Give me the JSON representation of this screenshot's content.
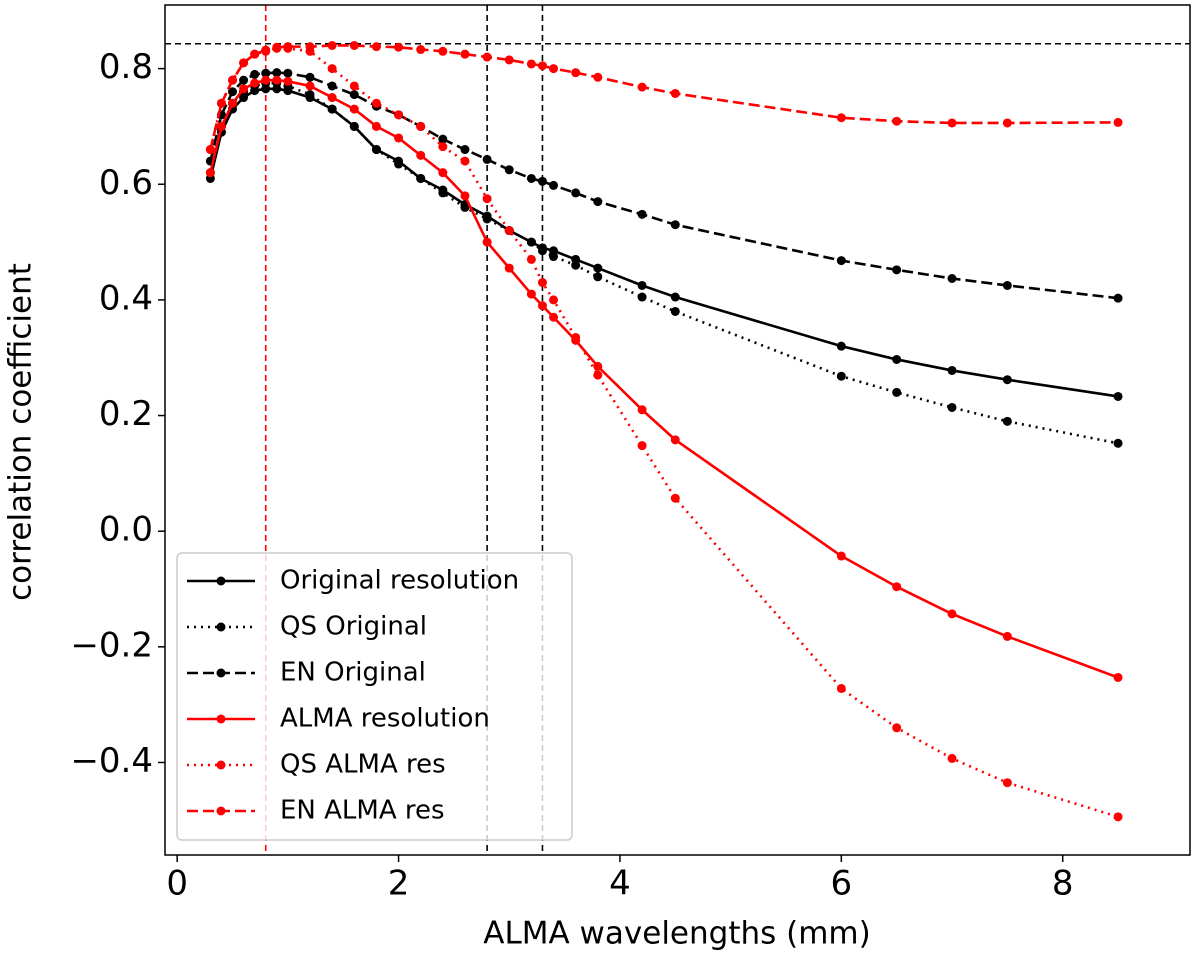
{
  "chart_data": {
    "type": "line",
    "xlabel": "ALMA wavelengths (mm)",
    "ylabel": "correlation coefficient",
    "x": [
      0.3,
      0.4,
      0.5,
      0.6,
      0.7,
      0.8,
      0.9,
      1.0,
      1.2,
      1.4,
      1.6,
      1.8,
      2.0,
      2.2,
      2.4,
      2.6,
      2.8,
      3.0,
      3.2,
      3.3,
      3.4,
      3.6,
      3.8,
      4.2,
      4.5,
      6.0,
      6.5,
      7.0,
      7.5,
      8.5
    ],
    "series": [
      {
        "name": "Original resolution",
        "color": "#000000",
        "style": "solid",
        "values": [
          0.61,
          0.69,
          0.73,
          0.75,
          0.762,
          0.765,
          0.765,
          0.762,
          0.75,
          0.73,
          0.7,
          0.66,
          0.64,
          0.61,
          0.59,
          0.565,
          0.545,
          0.52,
          0.5,
          0.49,
          0.485,
          0.47,
          0.455,
          0.425,
          0.405,
          0.32,
          0.297,
          0.278,
          0.262,
          0.233
        ]
      },
      {
        "name": "QS Original",
        "color": "#000000",
        "style": "dotted",
        "values": [
          0.62,
          0.7,
          0.74,
          0.76,
          0.77,
          0.775,
          0.775,
          0.77,
          0.755,
          0.73,
          0.7,
          0.66,
          0.635,
          0.61,
          0.585,
          0.56,
          0.54,
          0.52,
          0.5,
          0.485,
          0.475,
          0.46,
          0.44,
          0.405,
          0.38,
          0.268,
          0.24,
          0.214,
          0.19,
          0.152
        ]
      },
      {
        "name": "EN Original",
        "color": "#000000",
        "style": "dashed",
        "values": [
          0.64,
          0.72,
          0.76,
          0.78,
          0.79,
          0.792,
          0.793,
          0.792,
          0.785,
          0.77,
          0.755,
          0.735,
          0.72,
          0.7,
          0.678,
          0.66,
          0.643,
          0.625,
          0.61,
          0.605,
          0.598,
          0.585,
          0.57,
          0.548,
          0.53,
          0.468,
          0.452,
          0.437,
          0.425,
          0.403
        ]
      },
      {
        "name": "ALMA resolution",
        "color": "#ff0000",
        "style": "solid",
        "values": [
          0.62,
          0.7,
          0.74,
          0.765,
          0.775,
          0.78,
          0.78,
          0.778,
          0.77,
          0.75,
          0.73,
          0.7,
          0.68,
          0.65,
          0.62,
          0.58,
          0.5,
          0.455,
          0.41,
          0.39,
          0.37,
          0.33,
          0.285,
          0.21,
          0.158,
          -0.043,
          -0.096,
          -0.143,
          -0.182,
          -0.253
        ]
      },
      {
        "name": "QS ALMA res",
        "color": "#ff0000",
        "style": "dotted",
        "values": [
          0.66,
          0.74,
          0.78,
          0.81,
          0.825,
          0.83,
          0.835,
          0.835,
          0.83,
          0.8,
          0.77,
          0.74,
          0.72,
          0.7,
          0.665,
          0.64,
          0.575,
          0.52,
          0.47,
          0.43,
          0.4,
          0.335,
          0.27,
          0.148,
          0.057,
          -0.272,
          -0.34,
          -0.393,
          -0.435,
          -0.494
        ]
      },
      {
        "name": "EN ALMA res",
        "color": "#ff0000",
        "style": "dashed",
        "values": [
          0.66,
          0.74,
          0.78,
          0.81,
          0.825,
          0.832,
          0.837,
          0.838,
          0.838,
          0.84,
          0.84,
          0.838,
          0.837,
          0.833,
          0.83,
          0.825,
          0.82,
          0.815,
          0.808,
          0.805,
          0.8,
          0.793,
          0.785,
          0.768,
          0.757,
          0.715,
          0.709,
          0.706,
          0.706,
          0.707
        ]
      }
    ],
    "vlines": [
      {
        "value": 0.8,
        "color": "#ff0000"
      },
      {
        "value": 2.8,
        "color": "#000000"
      },
      {
        "value": 3.3,
        "color": "#000000"
      }
    ],
    "hlines": [
      {
        "value": 0.843,
        "color": "#000000"
      }
    ],
    "xlim": [
      -0.11,
      9.15
    ],
    "ylim": [
      -0.56,
      0.91
    ],
    "xticks": [
      0,
      2,
      4,
      6,
      8
    ],
    "yticks": [
      {
        "value": -0.4,
        "label": "−0.4"
      },
      {
        "value": -0.2,
        "label": "−0.2"
      },
      {
        "value": 0,
        "label": "0.0"
      },
      0.2,
      0.4,
      0.6,
      0.8
    ],
    "legend": "lower left"
  }
}
